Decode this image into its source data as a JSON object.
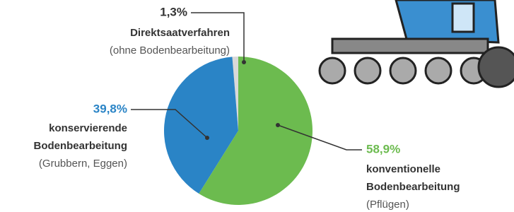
{
  "chart_data": {
    "type": "pie",
    "categories": [
      [
        "Direktsaatverfahren"
      ],
      [
        "konservierende",
        "Bodenbearbeitung"
      ],
      [
        "konventionelle",
        "Bodenbearbeitung"
      ]
    ],
    "sublabels": [
      "(ohne Bodenbearbeitung)",
      "(Grubbern, Eggen)",
      "(Pflügen)"
    ],
    "values": [
      1.3,
      39.8,
      58.9
    ],
    "value_labels": [
      "1,3%",
      "39,8%",
      "58,9%"
    ],
    "colors": [
      "#d9d9d9",
      "#2a84c6",
      "#6cbb4f"
    ]
  }
}
